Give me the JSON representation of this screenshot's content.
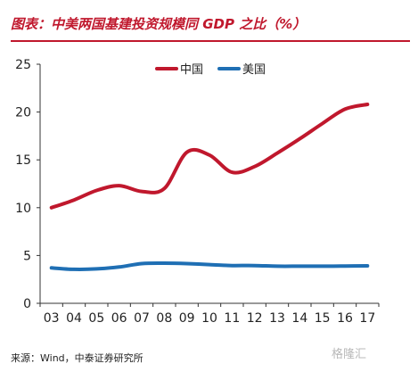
{
  "title": "图表：中美两国基建投资规模同 GDP 之比（%）",
  "source": "来源：Wind，中泰证券研究所",
  "watermark": "格隆汇",
  "chart_data": {
    "type": "line",
    "x": [
      "03",
      "04",
      "05",
      "06",
      "07",
      "08",
      "09",
      "10",
      "11",
      "12",
      "13",
      "14",
      "15",
      "16",
      "17"
    ],
    "ylim": [
      0,
      25
    ],
    "yticks": [
      0,
      5,
      10,
      15,
      20,
      25
    ],
    "grid": false,
    "legend_position": "top",
    "series": [
      {
        "name": "中国",
        "color": "#c0182d",
        "values": [
          10.0,
          10.8,
          11.8,
          12.3,
          11.7,
          12.0,
          15.8,
          15.5,
          13.7,
          14.3,
          15.7,
          17.2,
          18.8,
          20.3,
          20.8
        ]
      },
      {
        "name": "美国",
        "color": "#1f6fb4",
        "values": [
          3.7,
          3.55,
          3.6,
          3.8,
          4.15,
          4.2,
          4.15,
          4.05,
          3.95,
          3.95,
          3.88,
          3.88,
          3.88,
          3.9,
          3.92
        ]
      }
    ]
  }
}
